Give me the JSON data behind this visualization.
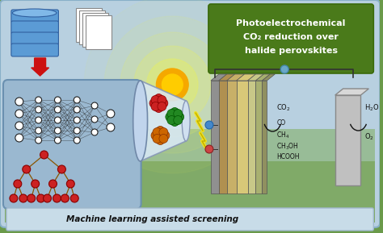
{
  "bg_outer": "#6a9a4a",
  "bg_inner": "#b8d0e0",
  "sun_glow_color": "#e8f060",
  "sun_core": "#f5a800",
  "text_bottom": "Machine learning assisted screening",
  "text_tr1": "Photoelectrochemical",
  "text_tr2": "CO₂ reduction over",
  "text_tr3": "halide perovskites",
  "db_color": "#5b9bd5",
  "arrow_red": "#cc1111",
  "green_panel": "#4a7a1a",
  "green_panel_ec": "#3a6a0a",
  "bottom_banner": "#c8dce8",
  "ml_box_fc": "#9ab8d0",
  "ml_box_ec": "#6a90b0",
  "nn_node": "#ffffff",
  "nn_edge": "#222222",
  "tree_node": "#cc2222",
  "tree_edge": "#8a5500",
  "cell_layers": [
    "#909090",
    "#b8a060",
    "#c8b070",
    "#d0c080",
    "#c8c890",
    "#b0b878",
    "#a0a870"
  ],
  "cell_layer_widths": [
    8,
    10,
    10,
    12,
    8,
    6
  ],
  "wire_color": "#333333",
  "conn_dot": "#6aA8c8",
  "elec_blue": "#4488cc",
  "elec_red": "#cc4444",
  "right_elec_fc": "#c0c0c0",
  "right_elec_ec": "#888888",
  "lightning": "#f0e020",
  "product_text": "#111111",
  "crystal_red": "#cc2222",
  "crystal_green": "#228822",
  "crystal_orange": "#cc6600"
}
